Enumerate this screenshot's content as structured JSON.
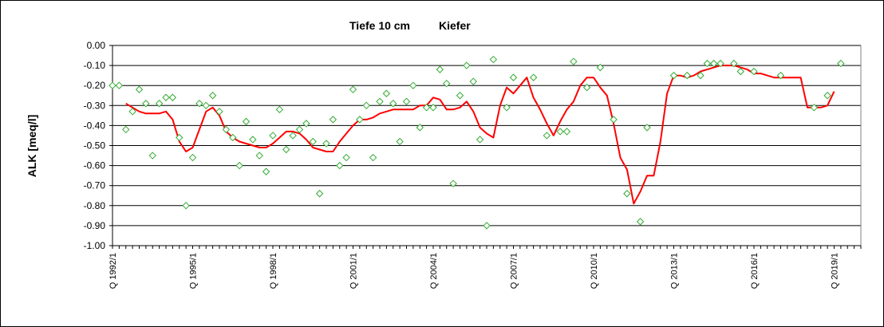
{
  "chart_data": {
    "type": "line",
    "title_parts": [
      "Tiefe  10 cm",
      "Kiefer"
    ],
    "xlabel": "",
    "ylabel": "ALK [meq/l]",
    "ylim": [
      -1.0,
      0.0
    ],
    "yticks": [
      "0.00",
      "-0.10",
      "-0.20",
      "-0.30",
      "-0.40",
      "-0.50",
      "-0.60",
      "-0.70",
      "-0.80",
      "-0.90",
      "-1.00"
    ],
    "xlim": [
      1992.0,
      2020.0
    ],
    "xtick_labels": [
      {
        "label": "Q 1992/1",
        "x": 1992.0
      },
      {
        "label": "Q 1995/1",
        "x": 1995.0
      },
      {
        "label": "Q 1998/1",
        "x": 1998.0
      },
      {
        "label": "Q 2001/1",
        "x": 2001.0
      },
      {
        "label": "Q 2004/1",
        "x": 2004.0
      },
      {
        "label": "Q 2007/1",
        "x": 2007.0
      },
      {
        "label": "Q 2010/1",
        "x": 2010.0
      },
      {
        "label": "Q 2013/1",
        "x": 2013.0
      },
      {
        "label": "Q 2016/1",
        "x": 2016.0
      },
      {
        "label": "Q 2019/1",
        "x": 2019.0
      }
    ],
    "grid": "horizontal",
    "legend": "none",
    "colors": {
      "line": "#ff0000",
      "points": "#33aa33",
      "grid": "#000000",
      "plot_border": "#808080"
    },
    "series": [
      {
        "kind": "scatter",
        "marker": "diamond",
        "points": [
          [
            1992.0,
            -0.2
          ],
          [
            1992.25,
            -0.2
          ],
          [
            1992.5,
            -0.42
          ],
          [
            1992.75,
            -0.33
          ],
          [
            1993.0,
            -0.22
          ],
          [
            1993.25,
            -0.29
          ],
          [
            1993.5,
            -0.55
          ],
          [
            1993.75,
            -0.29
          ],
          [
            1994.0,
            -0.26
          ],
          [
            1994.25,
            -0.26
          ],
          [
            1994.5,
            -0.46
          ],
          [
            1994.75,
            -0.8
          ],
          [
            1995.0,
            -0.56
          ],
          [
            1995.25,
            -0.29
          ],
          [
            1995.5,
            -0.3
          ],
          [
            1995.75,
            -0.25
          ],
          [
            1996.0,
            -0.33
          ],
          [
            1996.25,
            -0.42
          ],
          [
            1996.5,
            -0.46
          ],
          [
            1996.75,
            -0.6
          ],
          [
            1997.0,
            -0.38
          ],
          [
            1997.25,
            -0.47
          ],
          [
            1997.5,
            -0.55
          ],
          [
            1997.75,
            -0.63
          ],
          [
            1998.0,
            -0.45
          ],
          [
            1998.25,
            -0.32
          ],
          [
            1998.5,
            -0.52
          ],
          [
            1998.75,
            -0.45
          ],
          [
            1999.0,
            -0.42
          ],
          [
            1999.25,
            -0.39
          ],
          [
            1999.5,
            -0.48
          ],
          [
            1999.75,
            -0.74
          ],
          [
            2000.0,
            -0.49
          ],
          [
            2000.25,
            -0.37
          ],
          [
            2000.5,
            -0.6
          ],
          [
            2000.75,
            -0.56
          ],
          [
            2001.0,
            -0.22
          ],
          [
            2001.25,
            -0.37
          ],
          [
            2001.5,
            -0.3
          ],
          [
            2001.75,
            -0.56
          ],
          [
            2002.0,
            -0.28
          ],
          [
            2002.25,
            -0.24
          ],
          [
            2002.5,
            -0.29
          ],
          [
            2002.75,
            -0.48
          ],
          [
            2003.0,
            -0.28
          ],
          [
            2003.25,
            -0.2
          ],
          [
            2003.5,
            -0.41
          ],
          [
            2003.75,
            -0.31
          ],
          [
            2004.0,
            -0.31
          ],
          [
            2004.25,
            -0.12
          ],
          [
            2004.5,
            -0.19
          ],
          [
            2004.75,
            -0.69
          ],
          [
            2005.0,
            -0.25
          ],
          [
            2005.25,
            -0.1
          ],
          [
            2005.5,
            -0.18
          ],
          [
            2005.75,
            -0.47
          ],
          [
            2006.0,
            -0.9
          ],
          [
            2006.25,
            -0.07
          ],
          [
            2006.75,
            -0.31
          ],
          [
            2007.0,
            -0.16
          ],
          [
            2007.75,
            -0.16
          ],
          [
            2008.25,
            -0.45
          ],
          [
            2008.75,
            -0.43
          ],
          [
            2009.0,
            -0.43
          ],
          [
            2009.25,
            -0.08
          ],
          [
            2009.75,
            -0.21
          ],
          [
            2010.25,
            -0.11
          ],
          [
            2010.75,
            -0.37
          ],
          [
            2011.25,
            -0.74
          ],
          [
            2011.75,
            -0.88
          ],
          [
            2012.0,
            -0.41
          ],
          [
            2013.0,
            -0.15
          ],
          [
            2013.5,
            -0.15
          ],
          [
            2014.0,
            -0.15
          ],
          [
            2014.25,
            -0.09
          ],
          [
            2014.5,
            -0.09
          ],
          [
            2014.75,
            -0.09
          ],
          [
            2015.25,
            -0.09
          ],
          [
            2015.5,
            -0.13
          ],
          [
            2016.0,
            -0.13
          ],
          [
            2017.0,
            -0.15
          ],
          [
            2018.25,
            -0.31
          ],
          [
            2018.75,
            -0.25
          ],
          [
            2019.25,
            -0.09
          ]
        ]
      },
      {
        "kind": "line",
        "points": [
          [
            1992.5,
            -0.29
          ],
          [
            1992.75,
            -0.31
          ],
          [
            1993.0,
            -0.33
          ],
          [
            1993.25,
            -0.34
          ],
          [
            1993.5,
            -0.34
          ],
          [
            1993.75,
            -0.34
          ],
          [
            1994.0,
            -0.33
          ],
          [
            1994.25,
            -0.37
          ],
          [
            1994.5,
            -0.48
          ],
          [
            1994.75,
            -0.53
          ],
          [
            1995.0,
            -0.51
          ],
          [
            1995.25,
            -0.42
          ],
          [
            1995.5,
            -0.33
          ],
          [
            1995.75,
            -0.31
          ],
          [
            1996.0,
            -0.35
          ],
          [
            1996.25,
            -0.43
          ],
          [
            1996.5,
            -0.46
          ],
          [
            1996.75,
            -0.48
          ],
          [
            1997.0,
            -0.49
          ],
          [
            1997.25,
            -0.5
          ],
          [
            1997.5,
            -0.51
          ],
          [
            1997.75,
            -0.51
          ],
          [
            1998.0,
            -0.49
          ],
          [
            1998.25,
            -0.46
          ],
          [
            1998.5,
            -0.43
          ],
          [
            1998.75,
            -0.43
          ],
          [
            1999.0,
            -0.44
          ],
          [
            1999.25,
            -0.47
          ],
          [
            1999.5,
            -0.51
          ],
          [
            1999.75,
            -0.52
          ],
          [
            2000.0,
            -0.53
          ],
          [
            2000.25,
            -0.53
          ],
          [
            2000.5,
            -0.48
          ],
          [
            2000.75,
            -0.44
          ],
          [
            2001.0,
            -0.4
          ],
          [
            2001.25,
            -0.37
          ],
          [
            2001.5,
            -0.37
          ],
          [
            2001.75,
            -0.36
          ],
          [
            2002.0,
            -0.34
          ],
          [
            2002.25,
            -0.33
          ],
          [
            2002.5,
            -0.32
          ],
          [
            2002.75,
            -0.32
          ],
          [
            2003.0,
            -0.32
          ],
          [
            2003.25,
            -0.32
          ],
          [
            2003.5,
            -0.3
          ],
          [
            2003.75,
            -0.3
          ],
          [
            2004.0,
            -0.26
          ],
          [
            2004.25,
            -0.27
          ],
          [
            2004.5,
            -0.32
          ],
          [
            2004.75,
            -0.32
          ],
          [
            2005.0,
            -0.31
          ],
          [
            2005.25,
            -0.28
          ],
          [
            2005.5,
            -0.33
          ],
          [
            2005.75,
            -0.41
          ],
          [
            2006.0,
            -0.44
          ],
          [
            2006.25,
            -0.46
          ],
          [
            2006.5,
            -0.3
          ],
          [
            2006.75,
            -0.21
          ],
          [
            2007.0,
            -0.24
          ],
          [
            2007.25,
            -0.2
          ],
          [
            2007.5,
            -0.16
          ],
          [
            2007.75,
            -0.26
          ],
          [
            2008.0,
            -0.32
          ],
          [
            2008.25,
            -0.39
          ],
          [
            2008.5,
            -0.45
          ],
          [
            2008.75,
            -0.38
          ],
          [
            2009.0,
            -0.32
          ],
          [
            2009.25,
            -0.28
          ],
          [
            2009.5,
            -0.2
          ],
          [
            2009.75,
            -0.16
          ],
          [
            2010.0,
            -0.16
          ],
          [
            2010.25,
            -0.21
          ],
          [
            2010.5,
            -0.25
          ],
          [
            2010.75,
            -0.39
          ],
          [
            2011.0,
            -0.56
          ],
          [
            2011.25,
            -0.62
          ],
          [
            2011.5,
            -0.79
          ],
          [
            2011.75,
            -0.73
          ],
          [
            2012.0,
            -0.65
          ],
          [
            2012.25,
            -0.65
          ],
          [
            2012.5,
            -0.48
          ],
          [
            2012.75,
            -0.24
          ],
          [
            2013.0,
            -0.15
          ],
          [
            2013.25,
            -0.15
          ],
          [
            2013.5,
            -0.16
          ],
          [
            2013.75,
            -0.15
          ],
          [
            2014.0,
            -0.13
          ],
          [
            2014.25,
            -0.12
          ],
          [
            2014.5,
            -0.11
          ],
          [
            2014.75,
            -0.1
          ],
          [
            2015.0,
            -0.1
          ],
          [
            2015.25,
            -0.1
          ],
          [
            2015.5,
            -0.11
          ],
          [
            2015.75,
            -0.12
          ],
          [
            2016.0,
            -0.14
          ],
          [
            2016.25,
            -0.14
          ],
          [
            2016.5,
            -0.15
          ],
          [
            2016.75,
            -0.16
          ],
          [
            2017.0,
            -0.16
          ],
          [
            2017.25,
            -0.16
          ],
          [
            2017.5,
            -0.16
          ],
          [
            2017.75,
            -0.16
          ],
          [
            2018.0,
            -0.31
          ],
          [
            2018.25,
            -0.31
          ],
          [
            2018.5,
            -0.31
          ],
          [
            2018.75,
            -0.3
          ],
          [
            2019.0,
            -0.23
          ]
        ]
      }
    ]
  }
}
